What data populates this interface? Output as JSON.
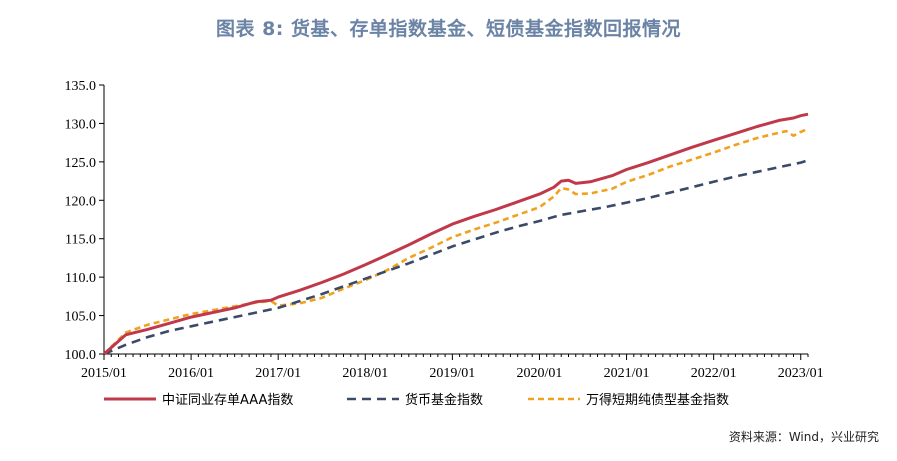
{
  "header": {
    "title": "图表 8:   货基、存单指数基金、短债基金指数回报情况"
  },
  "footer": {
    "source": "资料来源：Wind，兴业研究"
  },
  "chart_data": {
    "type": "line",
    "title": "图表 8:   货基、存单指数基金、短债基金指数回报情况",
    "xlabel": "",
    "ylabel": "",
    "x_ticks": [
      "2015/01",
      "2016/01",
      "2017/01",
      "2018/01",
      "2019/01",
      "2020/01",
      "2021/01",
      "2022/01",
      "2023/01"
    ],
    "y_ticks": [
      "100.0",
      "105.0",
      "110.0",
      "115.0",
      "120.0",
      "125.0",
      "130.0",
      "135.0"
    ],
    "ylim": [
      100,
      135
    ],
    "xlim": [
      "2015/01",
      "2023/02"
    ],
    "grid": false,
    "legend_position": "bottom",
    "series": [
      {
        "name": "中证同业存单AAA指数",
        "color": "#c0394b",
        "style": "solid",
        "points": [
          [
            "2015/01",
            100.0
          ],
          [
            "2015/04",
            102.5
          ],
          [
            "2015/07",
            103.2
          ],
          [
            "2015/10",
            104.0
          ],
          [
            "2016/01",
            104.8
          ],
          [
            "2016/04",
            105.4
          ],
          [
            "2016/07",
            106.0
          ],
          [
            "2016/10",
            106.8
          ],
          [
            "2016/12",
            107.0
          ],
          [
            "2017/01",
            107.4
          ],
          [
            "2017/04",
            108.3
          ],
          [
            "2017/07",
            109.3
          ],
          [
            "2017/10",
            110.4
          ],
          [
            "2018/01",
            111.6
          ],
          [
            "2018/04",
            112.9
          ],
          [
            "2018/07",
            114.2
          ],
          [
            "2018/10",
            115.6
          ],
          [
            "2019/01",
            116.9
          ],
          [
            "2019/04",
            117.9
          ],
          [
            "2019/07",
            118.8
          ],
          [
            "2019/10",
            119.8
          ],
          [
            "2020/01",
            120.8
          ],
          [
            "2020/03",
            121.7
          ],
          [
            "2020/04",
            122.5
          ],
          [
            "2020/05",
            122.6
          ],
          [
            "2020/06",
            122.2
          ],
          [
            "2020/08",
            122.4
          ],
          [
            "2020/11",
            123.2
          ],
          [
            "2021/01",
            124.0
          ],
          [
            "2021/04",
            124.9
          ],
          [
            "2021/07",
            125.9
          ],
          [
            "2021/10",
            126.9
          ],
          [
            "2022/01",
            127.8
          ],
          [
            "2022/04",
            128.7
          ],
          [
            "2022/07",
            129.6
          ],
          [
            "2022/10",
            130.4
          ],
          [
            "2022/12",
            130.7
          ],
          [
            "2023/01",
            131.0
          ],
          [
            "2023/02",
            131.2
          ]
        ]
      },
      {
        "name": "货币基金指数",
        "color": "#3a4a68",
        "style": "dashed",
        "points": [
          [
            "2015/01",
            100.0
          ],
          [
            "2015/04",
            101.2
          ],
          [
            "2015/07",
            102.2
          ],
          [
            "2015/10",
            103.0
          ],
          [
            "2016/01",
            103.6
          ],
          [
            "2016/04",
            104.2
          ],
          [
            "2016/07",
            104.8
          ],
          [
            "2016/10",
            105.4
          ],
          [
            "2017/01",
            106.0
          ],
          [
            "2017/04",
            106.9
          ],
          [
            "2017/07",
            107.8
          ],
          [
            "2017/10",
            108.8
          ],
          [
            "2018/01",
            109.8
          ],
          [
            "2018/04",
            110.8
          ],
          [
            "2018/07",
            111.8
          ],
          [
            "2018/10",
            112.9
          ],
          [
            "2019/01",
            114.0
          ],
          [
            "2019/04",
            114.9
          ],
          [
            "2019/07",
            115.8
          ],
          [
            "2019/10",
            116.6
          ],
          [
            "2020/01",
            117.3
          ],
          [
            "2020/04",
            118.1
          ],
          [
            "2020/07",
            118.6
          ],
          [
            "2020/10",
            119.1
          ],
          [
            "2021/01",
            119.7
          ],
          [
            "2021/04",
            120.3
          ],
          [
            "2021/07",
            121.0
          ],
          [
            "2021/10",
            121.7
          ],
          [
            "2022/01",
            122.4
          ],
          [
            "2022/04",
            123.1
          ],
          [
            "2022/07",
            123.7
          ],
          [
            "2022/10",
            124.3
          ],
          [
            "2023/01",
            124.9
          ],
          [
            "2023/02",
            125.2
          ]
        ]
      },
      {
        "name": "万得短期纯债型基金指数",
        "color": "#f0a21e",
        "style": "dashed",
        "points": [
          [
            "2015/01",
            100.0
          ],
          [
            "2015/04",
            102.8
          ],
          [
            "2015/07",
            103.8
          ],
          [
            "2015/10",
            104.5
          ],
          [
            "2016/01",
            105.2
          ],
          [
            "2016/04",
            105.7
          ],
          [
            "2016/07",
            106.2
          ],
          [
            "2016/10",
            106.7
          ],
          [
            "2016/12",
            106.9
          ],
          [
            "2017/01",
            106.3
          ],
          [
            "2017/04",
            106.6
          ],
          [
            "2017/07",
            107.3
          ],
          [
            "2017/10",
            108.5
          ],
          [
            "2018/01",
            109.6
          ],
          [
            "2018/04",
            110.9
          ],
          [
            "2018/07",
            112.5
          ],
          [
            "2018/10",
            113.8
          ],
          [
            "2019/01",
            115.2
          ],
          [
            "2019/04",
            116.2
          ],
          [
            "2019/07",
            117.1
          ],
          [
            "2019/10",
            118.1
          ],
          [
            "2020/01",
            119.1
          ],
          [
            "2020/03",
            120.5
          ],
          [
            "2020/04",
            121.6
          ],
          [
            "2020/05",
            121.4
          ],
          [
            "2020/06",
            120.8
          ],
          [
            "2020/08",
            120.9
          ],
          [
            "2020/11",
            121.5
          ],
          [
            "2021/01",
            122.4
          ],
          [
            "2021/04",
            123.3
          ],
          [
            "2021/07",
            124.4
          ],
          [
            "2021/10",
            125.3
          ],
          [
            "2022/01",
            126.2
          ],
          [
            "2022/04",
            127.2
          ],
          [
            "2022/07",
            128.1
          ],
          [
            "2022/10",
            128.8
          ],
          [
            "2022/11",
            129.0
          ],
          [
            "2022/12",
            128.4
          ],
          [
            "2023/01",
            128.9
          ],
          [
            "2023/02",
            129.3
          ]
        ]
      }
    ]
  }
}
